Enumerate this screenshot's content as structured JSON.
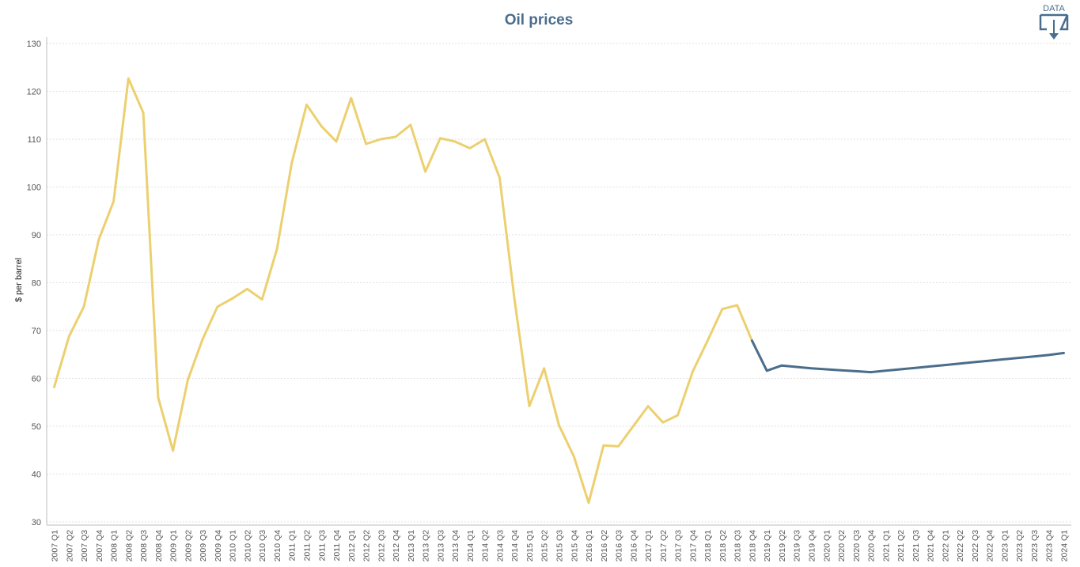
{
  "chart_data": {
    "type": "line",
    "title": "Oil prices",
    "ylabel": "$ per barrel",
    "xlabel": "",
    "ylim": [
      30,
      130
    ],
    "yticks": [
      30,
      40,
      50,
      60,
      70,
      80,
      90,
      100,
      110,
      120,
      130
    ],
    "grid": true,
    "categories": [
      "2007 Q1",
      "2007 Q2",
      "2007 Q3",
      "2007 Q4",
      "2008 Q1",
      "2008 Q2",
      "2008 Q3",
      "2008 Q4",
      "2009 Q1",
      "2009 Q2",
      "2009 Q3",
      "2009 Q4",
      "2010 Q1",
      "2010 Q2",
      "2010 Q3",
      "2010 Q4",
      "2011 Q1",
      "2011 Q2",
      "2011 Q3",
      "2011 Q4",
      "2012 Q1",
      "2012 Q2",
      "2012 Q3",
      "2012 Q4",
      "2013 Q1",
      "2013 Q2",
      "2013 Q3",
      "2013 Q4",
      "2014 Q1",
      "2014 Q2",
      "2014 Q3",
      "2014 Q4",
      "2015 Q1",
      "2015 Q2",
      "2015 Q3",
      "2015 Q4",
      "2016 Q1",
      "2016 Q2",
      "2016 Q3",
      "2016 Q4",
      "2017 Q1",
      "2017 Q2",
      "2017 Q3",
      "2017 Q4",
      "2018 Q1",
      "2018 Q2",
      "2018 Q3",
      "2018 Q4",
      "2019 Q1",
      "2019 Q2",
      "2019 Q3",
      "2019 Q4",
      "2020 Q1",
      "2020 Q2",
      "2020 Q3",
      "2020 Q4",
      "2021 Q1",
      "2021 Q2",
      "2021 Q3",
      "2021 Q4",
      "2022 Q1",
      "2022 Q2",
      "2022 Q3",
      "2022 Q4",
      "2023 Q1",
      "2023 Q2",
      "2023 Q3",
      "2023 Q4",
      "2024 Q1"
    ],
    "series": [
      {
        "color": "#ecd06f",
        "values": [
          58.2,
          68.8,
          75.0,
          89.0,
          97.0,
          122.7,
          115.5,
          56.0,
          44.9,
          59.7,
          68.2,
          75.0,
          76.7,
          78.7,
          76.5,
          87.0,
          105.0,
          117.2,
          112.7,
          109.5,
          118.6,
          109.0,
          110.0,
          110.5,
          113.0,
          103.2,
          110.2,
          109.5,
          108.1,
          110.0,
          102.0,
          76.6,
          54.2,
          62.1,
          50.2,
          43.7,
          34.0,
          46.0,
          45.8,
          50.0,
          54.2,
          50.8,
          52.3,
          61.4,
          67.8,
          74.5,
          75.3,
          67.9,
          null,
          null,
          null,
          null,
          null,
          null,
          null,
          null,
          null,
          null,
          null,
          null,
          null,
          null,
          null,
          null,
          null,
          null,
          null,
          null,
          null
        ]
      },
      {
        "color": "#4a6d8c",
        "values": [
          null,
          null,
          null,
          null,
          null,
          null,
          null,
          null,
          null,
          null,
          null,
          null,
          null,
          null,
          null,
          null,
          null,
          null,
          null,
          null,
          null,
          null,
          null,
          null,
          null,
          null,
          null,
          null,
          null,
          null,
          null,
          null,
          null,
          null,
          null,
          null,
          null,
          null,
          null,
          null,
          null,
          null,
          null,
          null,
          null,
          null,
          null,
          67.9,
          61.6,
          62.7,
          62.4,
          62.1,
          61.9,
          61.7,
          61.5,
          61.3,
          61.6,
          61.9,
          62.2,
          62.5,
          62.8,
          63.1,
          63.4,
          63.7,
          64.0,
          64.3,
          64.6,
          64.9,
          65.3
        ]
      }
    ]
  },
  "data_button": {
    "label": "DATA",
    "icon": "download-icon"
  }
}
